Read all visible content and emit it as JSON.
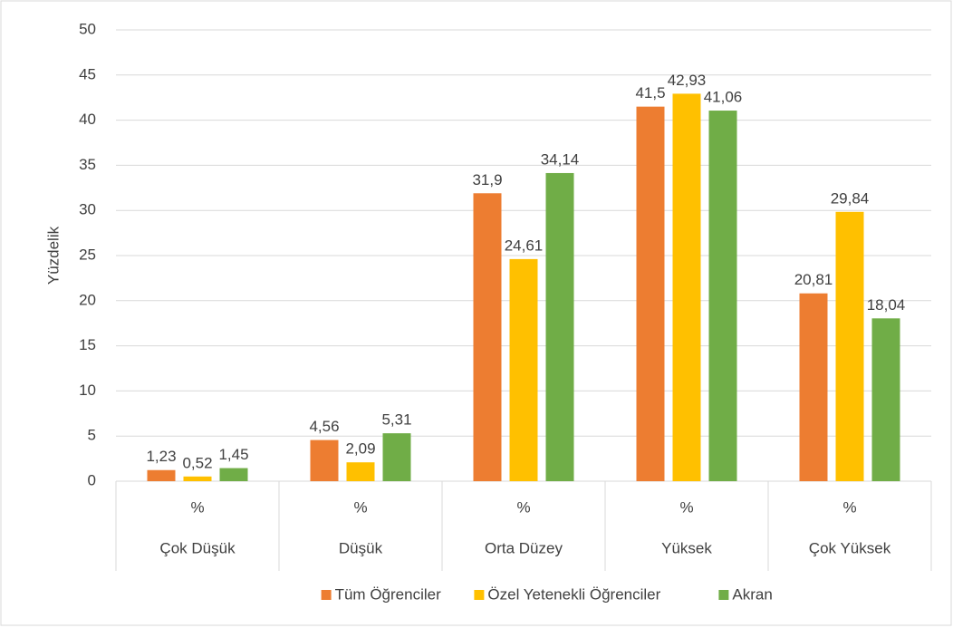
{
  "chart_data": {
    "type": "bar",
    "y_label": "Yüzdelik",
    "categories": [
      "Çok Düşük",
      "Düşük",
      "Orta Düzey",
      "Yüksek",
      "Çok Yüksek"
    ],
    "category_units": [
      "%",
      "%",
      "%",
      "%",
      "%"
    ],
    "series": [
      {
        "name": "Tüm Öğrenciler",
        "color": "#ed7d31",
        "values": [
          1.23,
          4.56,
          31.9,
          41.5,
          20.81
        ],
        "value_labels": [
          "1,23",
          "4,56",
          "31,9",
          "41,5",
          "20,81"
        ]
      },
      {
        "name": "Özel Yetenekli Öğrenciler",
        "color": "#ffc000",
        "values": [
          0.52,
          2.09,
          24.61,
          42.93,
          29.84
        ],
        "value_labels": [
          "0,52",
          "2,09",
          "24,61",
          "42,93",
          "29,84"
        ]
      },
      {
        "name": "Akran",
        "color": "#70ad47",
        "values": [
          1.45,
          5.31,
          34.14,
          41.06,
          18.04
        ],
        "value_labels": [
          "1,45",
          "5,31",
          "34,14",
          "41,06",
          "18,04"
        ]
      }
    ],
    "ylim": [
      0,
      50
    ],
    "yticks": [
      0,
      5,
      10,
      15,
      20,
      25,
      30,
      35,
      40,
      45,
      50
    ],
    "grid": true,
    "legend": "bottom"
  }
}
